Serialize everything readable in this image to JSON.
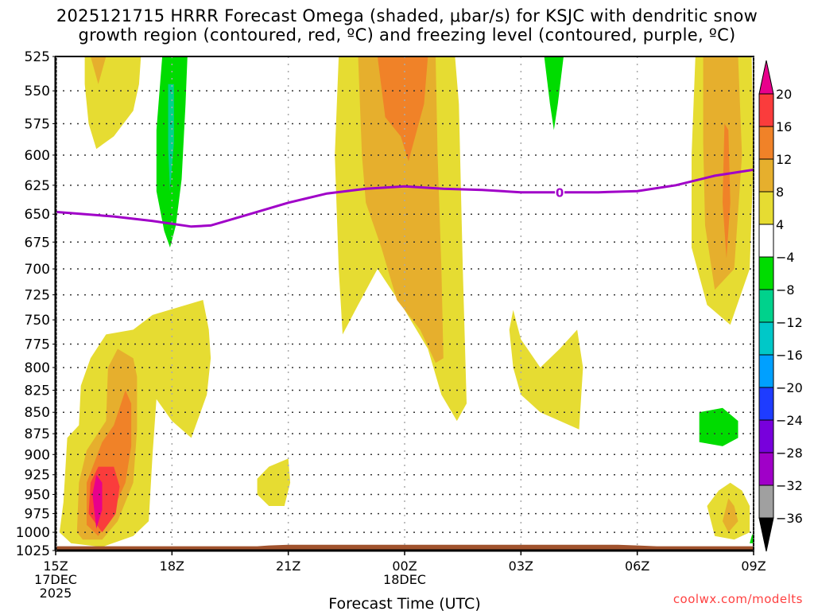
{
  "header": {
    "title_line1": "2025121715 HRRR Forecast Omega (shaded, μbar/s) for KSJC with dendritic snow",
    "title_line2": "growth region (contoured, red, ºC) and freezing level (contoured, purple, ºC)"
  },
  "footer": {
    "credit": "coolwx.com/modelts"
  },
  "chart_data": {
    "type": "heatmap",
    "title": "2025121715 HRRR Forecast Omega (shaded, μbar/s) for KSJC with dendritic snow growth region (contoured, red, ºC) and freezing level (contoured, purple, ºC)",
    "xlabel": "Forecast Time (UTC)",
    "ylabel": "",
    "x_ticks": [
      {
        "hour": 0,
        "label": "15Z",
        "sub": [
          "17DEC",
          "2025"
        ]
      },
      {
        "hour": 3,
        "label": "18Z",
        "sub": []
      },
      {
        "hour": 6,
        "label": "21Z",
        "sub": []
      },
      {
        "hour": 9,
        "label": "00Z",
        "sub": [
          "18DEC"
        ]
      },
      {
        "hour": 12,
        "label": "03Z",
        "sub": []
      },
      {
        "hour": 15,
        "label": "06Z",
        "sub": []
      },
      {
        "hour": 18,
        "label": "09Z",
        "sub": []
      }
    ],
    "xlim_hours": [
      0,
      18
    ],
    "y_ticks": [
      525,
      550,
      575,
      600,
      625,
      650,
      675,
      700,
      725,
      750,
      775,
      800,
      825,
      850,
      875,
      900,
      925,
      950,
      975,
      1000,
      1025
    ],
    "ylim_hpa": [
      525,
      1025
    ],
    "y_scale": "log-pressure (inverted)",
    "grid": true,
    "colorbar": {
      "placement": "right",
      "levels": [
        20,
        16,
        12,
        8,
        4,
        -4,
        -8,
        -12,
        -16,
        -20,
        -24,
        -28,
        -32,
        -36
      ],
      "bins": [
        {
          "range": ">20",
          "color": "#e8008c"
        },
        {
          "range": "16 to 20",
          "color": "#fa3c3c"
        },
        {
          "range": "12 to 16",
          "color": "#f08228"
        },
        {
          "range": "8 to 12",
          "color": "#e6af2d"
        },
        {
          "range": "4 to 8",
          "color": "#e6dc32"
        },
        {
          "range": "-4 to 4",
          "color": "#ffffff"
        },
        {
          "range": "-8 to -4",
          "color": "#00dc00"
        },
        {
          "range": "-12 to -8",
          "color": "#00d28c"
        },
        {
          "range": "-16 to -12",
          "color": "#00c8c8"
        },
        {
          "range": "-20 to -16",
          "color": "#00a0ff"
        },
        {
          "range": "-24 to -20",
          "color": "#1e3cff"
        },
        {
          "range": "-28 to -24",
          "color": "#7800dc"
        },
        {
          "range": "-32 to -28",
          "color": "#a000c8"
        },
        {
          "range": "-36 to -32",
          "color": "#a0a0a0"
        },
        {
          "range": "<-36",
          "color": "#000000"
        }
      ]
    },
    "freezing_level": {
      "color": "#a000c8",
      "label": "0",
      "label_at_hour": 13.0,
      "points": [
        {
          "hour": 0.0,
          "hpa": 648
        },
        {
          "hour": 1.5,
          "hpa": 652
        },
        {
          "hour": 2.5,
          "hpa": 656
        },
        {
          "hour": 3.5,
          "hpa": 661
        },
        {
          "hour": 4.0,
          "hpa": 660
        },
        {
          "hour": 5.0,
          "hpa": 650
        },
        {
          "hour": 6.0,
          "hpa": 640
        },
        {
          "hour": 7.0,
          "hpa": 632
        },
        {
          "hour": 8.0,
          "hpa": 628
        },
        {
          "hour": 9.0,
          "hpa": 626
        },
        {
          "hour": 10.0,
          "hpa": 628
        },
        {
          "hour": 11.0,
          "hpa": 629
        },
        {
          "hour": 12.0,
          "hpa": 631
        },
        {
          "hour": 13.0,
          "hpa": 631
        },
        {
          "hour": 14.0,
          "hpa": 631
        },
        {
          "hour": 15.0,
          "hpa": 630
        },
        {
          "hour": 16.0,
          "hpa": 625
        },
        {
          "hour": 17.0,
          "hpa": 617
        },
        {
          "hour": 18.0,
          "hpa": 612
        }
      ]
    },
    "terrain": {
      "color": "#a0522d",
      "note": "surface pressure shading at bottom, near 1020-1025 hPa"
    },
    "omega_regions": [
      {
        "name": "upward-4-8-a",
        "bin": "4 to 8",
        "center_hour": 1.0,
        "hpa_range": [
          525,
          590
        ]
      },
      {
        "name": "upward-8-12-a",
        "bin": "8 to 12",
        "center_hour": 1.0,
        "hpa_range": [
          525,
          545
        ]
      },
      {
        "name": "downward-4-8-b",
        "bin": "-8 to -4",
        "center_hour": 3.0,
        "hpa_range": [
          525,
          680
        ]
      },
      {
        "name": "downward-8-12-b",
        "bin": "-12 to -8",
        "center_hour": 3.0,
        "hpa_range": [
          545,
          660
        ]
      },
      {
        "name": "upward-low-lev",
        "bin": ">20",
        "center_hour": 1.0,
        "hpa_range": [
          930,
          1000
        ]
      },
      {
        "name": "upward-mid-day",
        "bin": "12 to 16",
        "center_hour": 8.8,
        "hpa_range": [
          525,
          610
        ]
      },
      {
        "name": "downward-spike",
        "bin": "-8 to -4",
        "center_hour": 12.9,
        "hpa_range": [
          525,
          580
        ]
      },
      {
        "name": "upward-late",
        "bin": "12 to 16",
        "center_hour": 17.6,
        "hpa_range": [
          580,
          670
        ]
      },
      {
        "name": "downward-late-low",
        "bin": "-8 to -4",
        "center_hour": 16.8,
        "hpa_range": [
          835,
          870
        ]
      },
      {
        "name": "upward-late-low",
        "bin": "8 to 12",
        "center_hour": 17.7,
        "hpa_range": [
          940,
          990
        ]
      }
    ]
  }
}
